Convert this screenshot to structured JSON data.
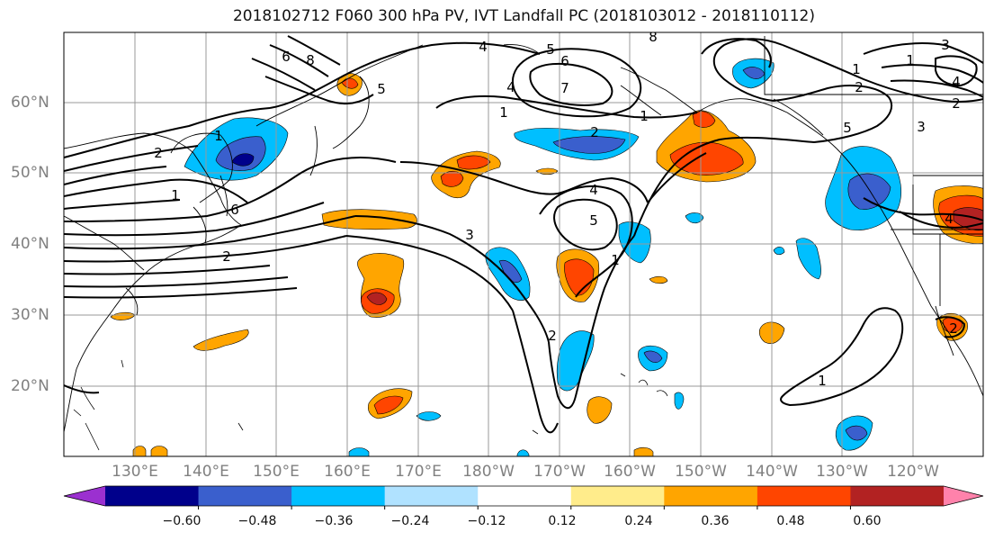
{
  "title": "2018102712 F060 300 hPa PV, IVT Landfall PC (2018103012 - 2018110112)",
  "latitude_labels": [
    "60°N",
    "50°N",
    "40°N",
    "30°N",
    "20°N"
  ],
  "longitude_labels": [
    "130°E",
    "140°E",
    "150°E",
    "160°E",
    "170°E",
    "180°W",
    "170°W",
    "160°W",
    "150°W",
    "140°W",
    "130°W",
    "120°W"
  ],
  "colorbar": {
    "tick_labels": [
      "−0.60",
      "−0.48",
      "−0.36",
      "−0.24",
      "−0.12",
      "0.12",
      "0.24",
      "0.36",
      "0.48",
      "0.60"
    ],
    "colors": [
      "#9b30d0",
      "#00008b",
      "#3a5fcd",
      "#00bfff",
      "#b0e2ff",
      "#ffffff",
      "#ffec8b",
      "#ffa500",
      "#ff4500",
      "#b22222",
      "#ff82ab"
    ]
  },
  "contour_labels": [
    "8",
    "6",
    "4",
    "5",
    "6",
    "7",
    "8",
    "1",
    "2",
    "3",
    "4",
    "1",
    "2",
    "5",
    "1",
    "2",
    "1",
    "6",
    "2",
    "4",
    "5",
    "3",
    "1",
    "2",
    "1",
    "5",
    "3",
    "2",
    "4",
    "4",
    "2",
    "1",
    "1"
  ]
}
